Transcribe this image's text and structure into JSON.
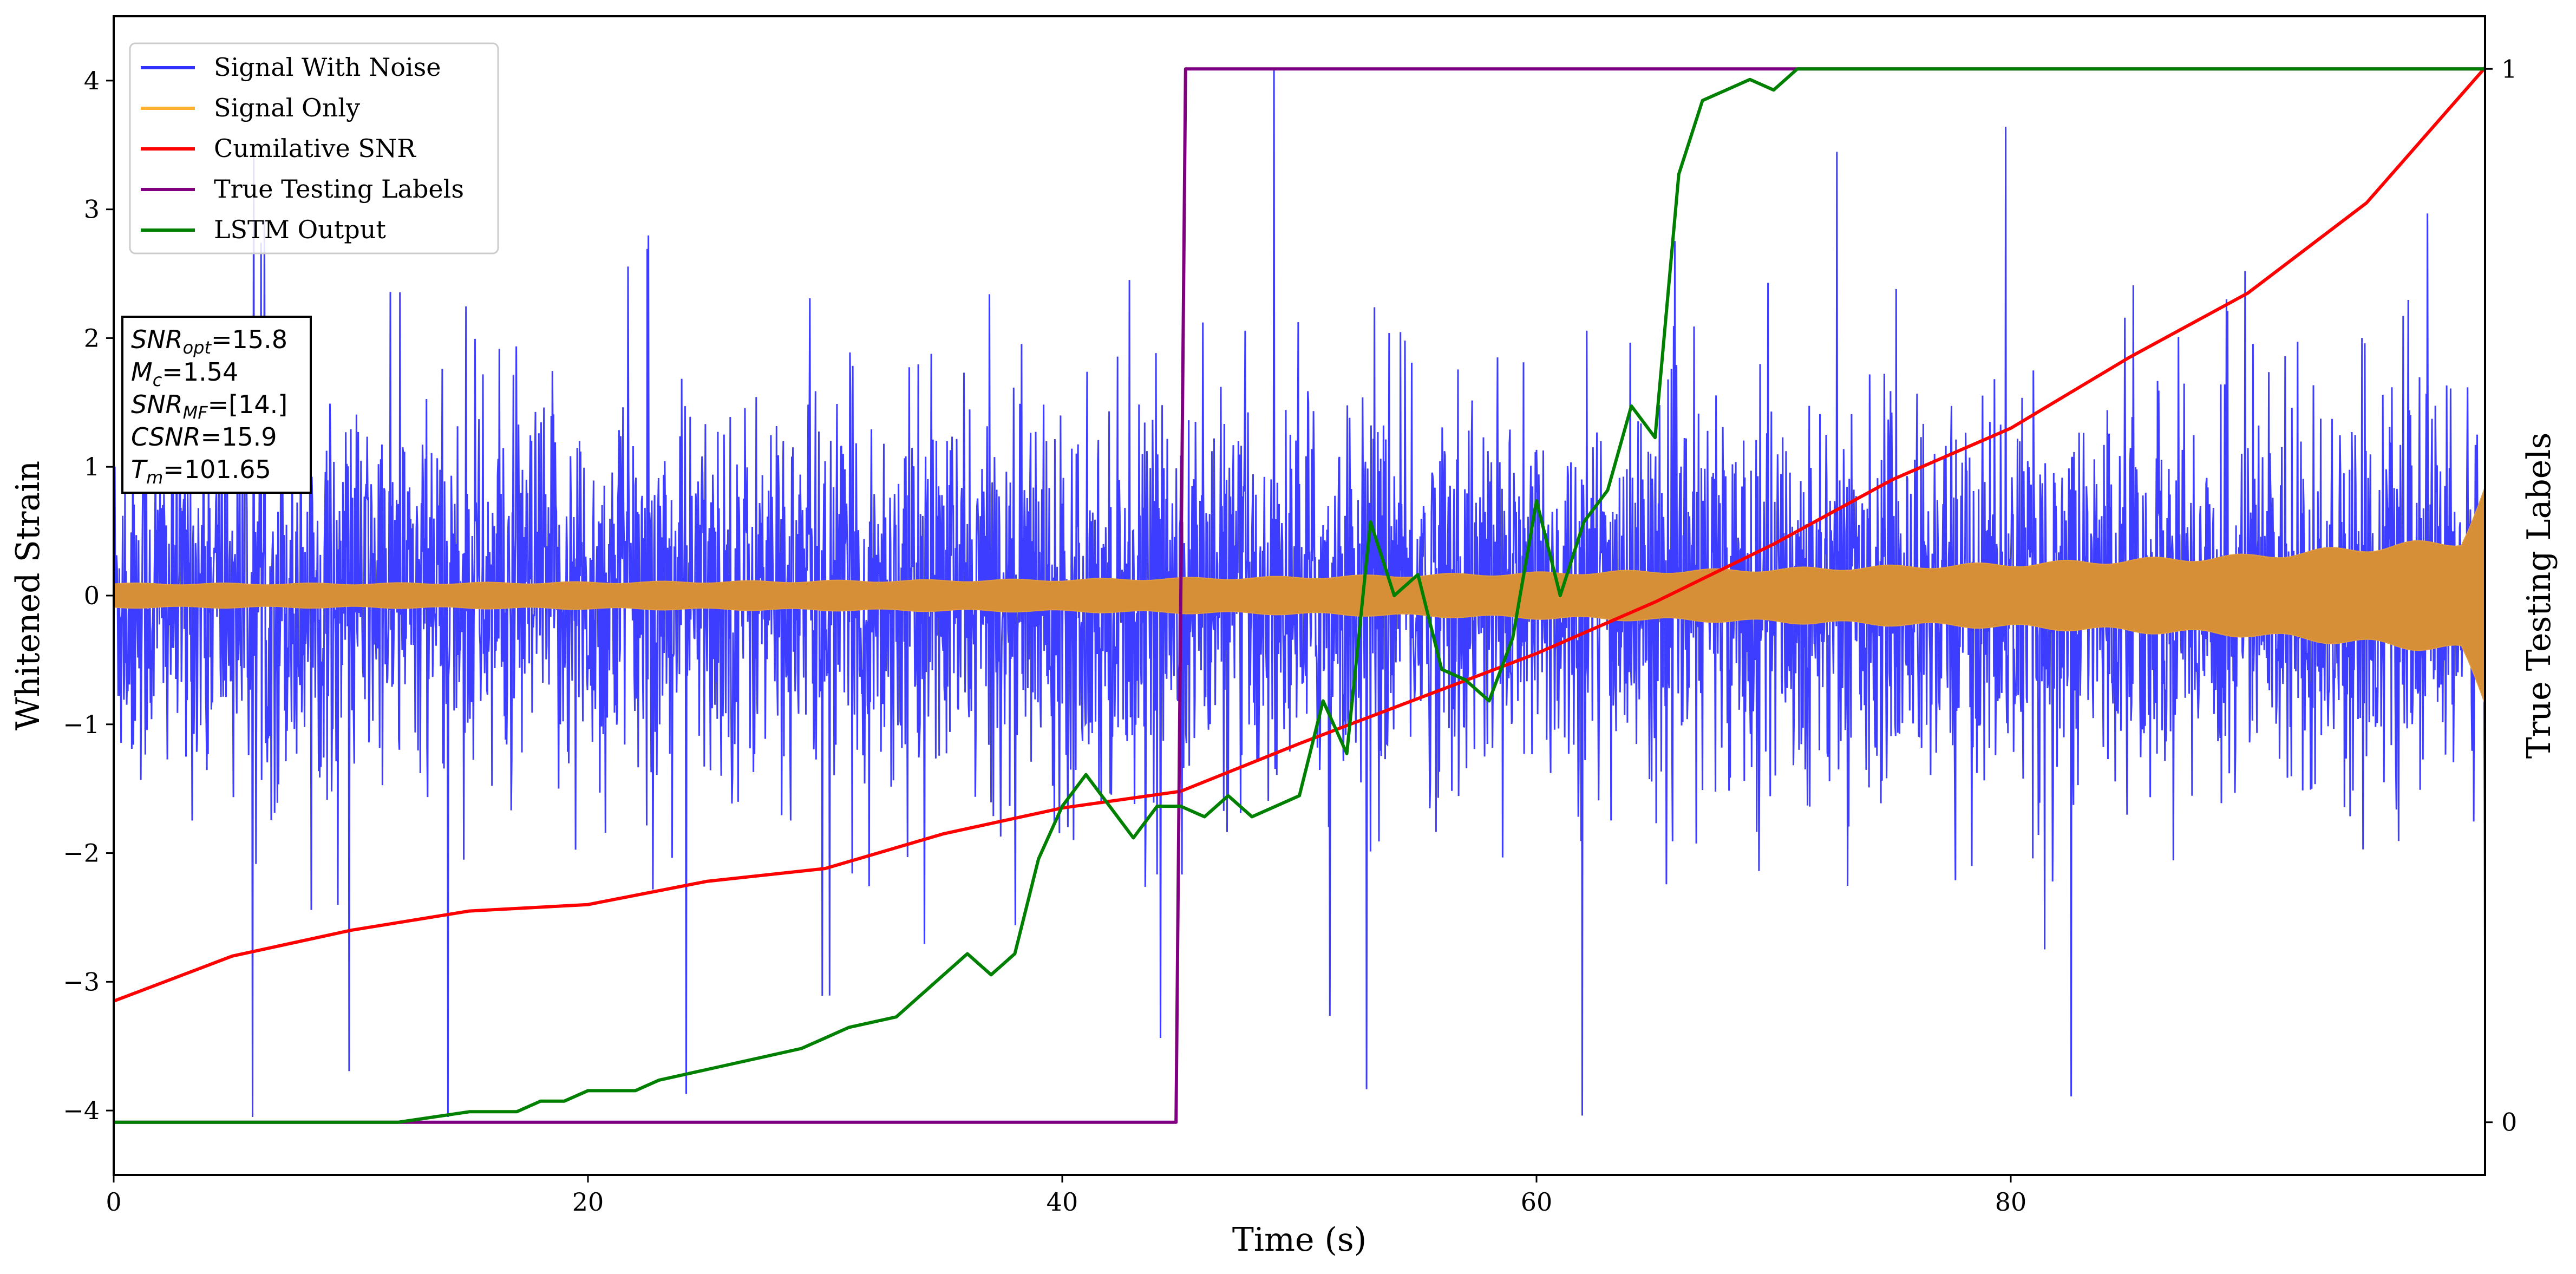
{
  "chart_data": {
    "type": "line",
    "title": "",
    "xlabel": "Time (s)",
    "ylabel": "Whitened Strain",
    "y2label": "True Testing Labels",
    "xlim": [
      0,
      100
    ],
    "ylim": [
      -4.5,
      4.5
    ],
    "y2lim": [
      -0.05,
      1.05
    ],
    "xticks": [
      "0",
      "20",
      "40",
      "60",
      "80"
    ],
    "xtick_values": [
      0,
      20,
      40,
      60,
      80
    ],
    "yticks": [
      "−4",
      "−3",
      "−2",
      "−1",
      "0",
      "1",
      "2",
      "3",
      "4"
    ],
    "ytick_values": [
      -4,
      -3,
      -2,
      -1,
      0,
      1,
      2,
      3,
      4
    ],
    "y2ticks": [
      "0",
      "1"
    ],
    "y2tick_values": [
      0,
      1
    ],
    "grid": false,
    "legend_position": "top-left",
    "series": [
      {
        "name": "Signal With Noise",
        "axis": "left",
        "color": "#3333ff",
        "style": "noise",
        "typical_range": [
          -2.5,
          2.5
        ],
        "extreme_range": [
          -4.05,
          4.1
        ]
      },
      {
        "name": "Signal Only",
        "axis": "left",
        "color": "#ffb02e",
        "style": "envelope",
        "envelope": {
          "x": [
            0,
            10,
            20,
            30,
            40,
            50,
            60,
            70,
            80,
            90,
            99,
            100
          ],
          "amplitude": [
            0.09,
            0.09,
            0.1,
            0.11,
            0.12,
            0.14,
            0.17,
            0.2,
            0.24,
            0.3,
            0.42,
            0.82
          ]
        }
      },
      {
        "name": "Cumilative SNR",
        "axis": "left",
        "color": "#ff0000",
        "x": [
          0,
          5,
          10,
          15,
          20,
          25,
          30,
          35,
          40,
          45,
          50,
          55,
          60,
          65,
          70,
          75,
          80,
          85,
          90,
          95,
          100
        ],
        "y": [
          -3.15,
          -2.8,
          -2.6,
          -2.45,
          -2.4,
          -2.22,
          -2.12,
          -1.85,
          -1.65,
          -1.52,
          -1.15,
          -0.8,
          -0.45,
          -0.05,
          0.4,
          0.9,
          1.3,
          1.85,
          2.35,
          3.05,
          4.1
        ]
      },
      {
        "name": "True Testing Labels",
        "axis": "right",
        "color": "#800080",
        "x": [
          0,
          44.8,
          45.2,
          100
        ],
        "y": [
          0,
          0,
          1,
          1
        ]
      },
      {
        "name": "LSTM Output",
        "axis": "right",
        "color": "#008000",
        "x": [
          0,
          12,
          15,
          17,
          18,
          19,
          20,
          22,
          23,
          25,
          27,
          29,
          30,
          31,
          33,
          34,
          35,
          36,
          37,
          38,
          39,
          40,
          41,
          42,
          43,
          44,
          45,
          46,
          47,
          48,
          49,
          50,
          51,
          52,
          53,
          54,
          55,
          56,
          57,
          58,
          59,
          60,
          61,
          62,
          63,
          64,
          65,
          66,
          67,
          68,
          69,
          70,
          71,
          72,
          74,
          76,
          78,
          80,
          90,
          100
        ],
        "y": [
          0,
          0,
          0.01,
          0.01,
          0.02,
          0.02,
          0.03,
          0.03,
          0.04,
          0.05,
          0.06,
          0.07,
          0.08,
          0.09,
          0.1,
          0.12,
          0.14,
          0.16,
          0.14,
          0.16,
          0.25,
          0.3,
          0.33,
          0.3,
          0.27,
          0.3,
          0.3,
          0.29,
          0.31,
          0.29,
          0.3,
          0.31,
          0.4,
          0.35,
          0.57,
          0.5,
          0.52,
          0.43,
          0.42,
          0.4,
          0.46,
          0.59,
          0.5,
          0.57,
          0.6,
          0.68,
          0.65,
          0.9,
          0.97,
          0.98,
          0.99,
          0.98,
          1,
          1,
          1,
          1,
          1,
          1,
          1,
          1
        ]
      }
    ],
    "annotation": {
      "lines": [
        {
          "base": "SNR",
          "sub": "opt",
          "value": "=15.8"
        },
        {
          "base": "M",
          "sub": "c",
          "value": "=1.54"
        },
        {
          "base": "SNR",
          "sub": "MF",
          "value": "=[14.]"
        },
        {
          "base": "CSNR",
          "sub": "",
          "value": "=15.9"
        },
        {
          "base": "T",
          "sub": "m",
          "value": "=101.65"
        }
      ]
    }
  }
}
